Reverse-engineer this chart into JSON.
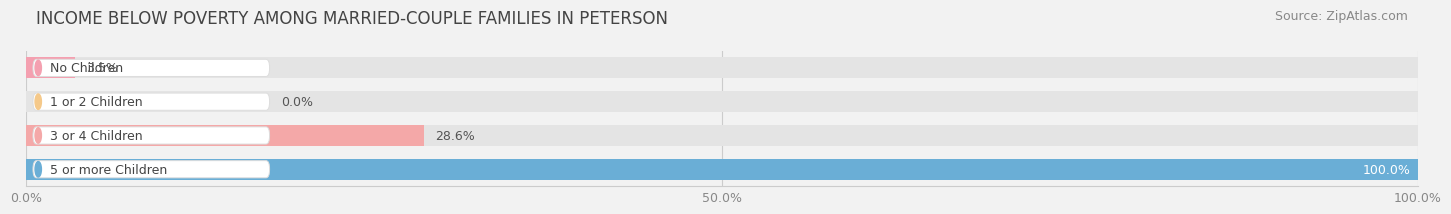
{
  "title": "INCOME BELOW POVERTY AMONG MARRIED-COUPLE FAMILIES IN PETERSON",
  "source": "Source: ZipAtlas.com",
  "categories": [
    "No Children",
    "1 or 2 Children",
    "3 or 4 Children",
    "5 or more Children"
  ],
  "values": [
    3.5,
    0.0,
    28.6,
    100.0
  ],
  "bar_colors": [
    "#f4a0b0",
    "#f5c98a",
    "#f4a8a8",
    "#6aaed6"
  ],
  "xlim": [
    0,
    100
  ],
  "xticks": [
    0.0,
    50.0,
    100.0
  ],
  "xticklabels": [
    "0.0%",
    "50.0%",
    "100.0%"
  ],
  "background_color": "#f2f2f2",
  "bar_background_color": "#e4e4e4",
  "title_fontsize": 12,
  "source_fontsize": 9,
  "bar_height": 0.62,
  "figsize": [
    14.06,
    2.33
  ]
}
